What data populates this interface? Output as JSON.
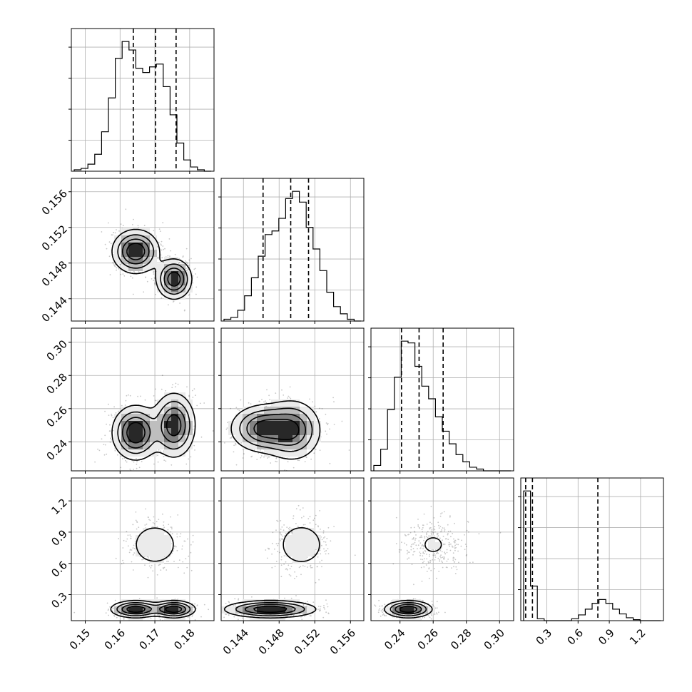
{
  "chart_data": {
    "type": "corner",
    "n_params": 4,
    "axis_labels": [
      "",
      "",
      "",
      ""
    ],
    "ticks": [
      {
        "values": [
          0.15,
          0.16,
          0.17,
          0.18
        ],
        "labels": [
          "0.15",
          "0.16",
          "0.17",
          "0.18"
        ],
        "range": [
          0.146,
          0.187
        ]
      },
      {
        "values": [
          0.144,
          0.148,
          0.152,
          0.156
        ],
        "labels": [
          "0.144",
          "0.148",
          "0.152",
          "0.156"
        ],
        "range": [
          0.1415,
          0.1575
        ]
      },
      {
        "values": [
          0.24,
          0.26,
          0.28,
          0.3
        ],
        "labels": [
          "0.24",
          "0.26",
          "0.28",
          "0.30"
        ],
        "range": [
          0.2225,
          0.3085
        ]
      },
      {
        "values": [
          0.3,
          0.6,
          0.9,
          1.2
        ],
        "labels": [
          "0.3",
          "0.6",
          "0.9",
          "1.2"
        ],
        "range": [
          0.05,
          1.42
        ]
      }
    ],
    "histograms": [
      {
        "param": 0,
        "counts": [
          1,
          2,
          5,
          12,
          28,
          52,
          80,
          92,
          86,
          73,
          70,
          74,
          76,
          60,
          40,
          20,
          8,
          3,
          1,
          0
        ],
        "quantiles": [
          0.1638,
          0.1702,
          0.1761
        ]
      },
      {
        "param": 1,
        "counts": [
          1,
          2,
          6,
          14,
          24,
          36,
          48,
          50,
          57,
          68,
          72,
          66,
          52,
          40,
          28,
          16,
          8,
          4,
          1,
          0
        ],
        "quantiles": [
          0.1462,
          0.1493,
          0.1513
        ]
      },
      {
        "param": 2,
        "counts": [
          3,
          12,
          34,
          52,
          72,
          71,
          58,
          47,
          40,
          30,
          22,
          15,
          9,
          5,
          2,
          1,
          0,
          0,
          0,
          0
        ],
        "quantiles": [
          0.2409,
          0.2515,
          0.266
        ]
      },
      {
        "param": 3,
        "counts": [
          135,
          36,
          2,
          0,
          0,
          0,
          0,
          2,
          6,
          12,
          18,
          22,
          18,
          12,
          7,
          3,
          1,
          0,
          0,
          0
        ],
        "quantiles": [
          0.097,
          0.162,
          0.79
        ]
      }
    ],
    "pairs": [
      {
        "x": 1,
        "y": 0,
        "modes": [
          {
            "cx": 0.1645,
            "cy": 0.1493,
            "sx": 0.0033,
            "sy": 0.0012,
            "w": 0.6
          },
          {
            "cx": 0.1755,
            "cy": 0.1462,
            "sx": 0.0025,
            "sy": 0.0011,
            "w": 0.4
          }
        ]
      },
      {
        "x": 2,
        "y": 0,
        "modes": [
          {
            "cx": 0.1645,
            "cy": 0.2455,
            "sx": 0.0033,
            "sy": 0.008,
            "w": 0.5
          },
          {
            "cx": 0.1755,
            "cy": 0.25,
            "sx": 0.003,
            "sy": 0.0095,
            "w": 0.5
          }
        ]
      },
      {
        "x": 2,
        "y": 1,
        "modes": [
          {
            "cx": 0.1462,
            "cy": 0.248,
            "sx": 0.0018,
            "sy": 0.007,
            "w": 0.5
          },
          {
            "cx": 0.1495,
            "cy": 0.247,
            "sx": 0.0016,
            "sy": 0.009,
            "w": 0.5
          }
        ]
      },
      {
        "x": 3,
        "y": 0,
        "modes": [
          {
            "cx": 0.1645,
            "cy": 0.16,
            "sx": 0.0035,
            "sy": 0.04,
            "w": 0.35
          },
          {
            "cx": 0.1755,
            "cy": 0.16,
            "sx": 0.003,
            "sy": 0.04,
            "w": 0.3
          },
          {
            "cx": 0.17,
            "cy": 0.78,
            "sx": 0.004,
            "sy": 0.12,
            "w": 0.35
          }
        ]
      },
      {
        "x": 3,
        "y": 1,
        "modes": [
          {
            "cx": 0.147,
            "cy": 0.16,
            "sx": 0.0025,
            "sy": 0.04,
            "w": 0.65
          },
          {
            "cx": 0.1505,
            "cy": 0.78,
            "sx": 0.0015,
            "sy": 0.12,
            "w": 0.35
          }
        ]
      },
      {
        "x": 3,
        "y": 2,
        "modes": [
          {
            "cx": 0.245,
            "cy": 0.16,
            "sx": 0.007,
            "sy": 0.04,
            "w": 0.65
          },
          {
            "cx": 0.26,
            "cy": 0.78,
            "sx": 0.009,
            "sy": 0.12,
            "w": 0.35
          }
        ]
      }
    ],
    "grid": true,
    "legend": "none"
  }
}
